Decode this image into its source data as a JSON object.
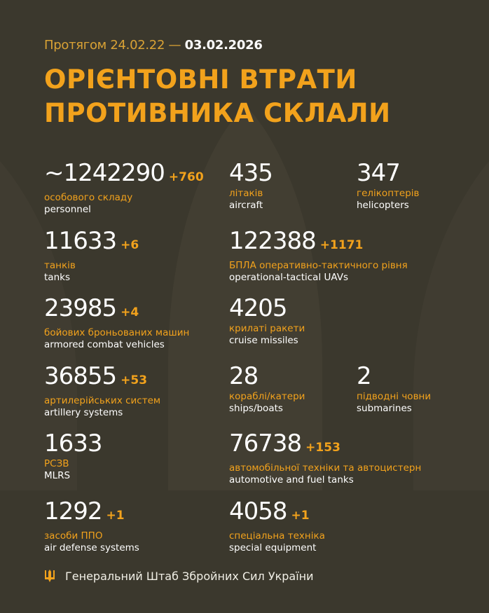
{
  "header": {
    "period_prefix": "Протягом 24.02.22 —",
    "period_end": "03.02.2026",
    "title_line1": "ОРІЄНТОВНІ ВТРАТИ",
    "title_line2": "ПРОТИВНИКА СКЛАЛИ"
  },
  "items": [
    {
      "value": "~1242290",
      "delta": "+760",
      "ua": "особового складу",
      "en": "personnel"
    },
    {
      "value": "435",
      "delta": "",
      "ua": "літаків",
      "en": "aircraft"
    },
    {
      "value": "347",
      "delta": "",
      "ua": "гелікоптерів",
      "en": "helicopters"
    },
    {
      "value": "11633",
      "delta": "+6",
      "ua": "танків",
      "en": "tanks"
    },
    {
      "value": "122388",
      "delta": "+1171",
      "ua": "БПЛА оперативно-тактичного рівня",
      "en": "operational-tactical UAVs"
    },
    {
      "value": "23985",
      "delta": "+4",
      "ua": "бойових броньованих машин",
      "en": "armored combat vehicles"
    },
    {
      "value": "4205",
      "delta": "",
      "ua": "крилаті ракети",
      "en": "cruise missiles"
    },
    {
      "value": "36855",
      "delta": "+53",
      "ua": "артилерійських систем",
      "en": "artillery systems"
    },
    {
      "value": "28",
      "delta": "",
      "ua": "кораблі/катери",
      "en": "ships/boats"
    },
    {
      "value": "2",
      "delta": "",
      "ua": "підводні човни",
      "en": "submarines"
    },
    {
      "value": "1633",
      "delta": "",
      "ua": "РСЗВ",
      "en": "MLRS"
    },
    {
      "value": "76738",
      "delta": "+153",
      "ua": "автомобільної техніки та автоцистерн",
      "en": "automotive and fuel tanks"
    },
    {
      "value": "1292",
      "delta": "+1",
      "ua": "засоби ППО",
      "en": "air defense systems"
    },
    {
      "value": "4058",
      "delta": "+1",
      "ua": "спеціальна техніка",
      "en": "special equipment"
    }
  ],
  "footer": {
    "text": "Генеральний Штаб Збройних Сил України",
    "icon": "trident-icon"
  },
  "colors": {
    "background": "#3b382d",
    "accent": "#f2a21c",
    "text": "#ffffff"
  }
}
